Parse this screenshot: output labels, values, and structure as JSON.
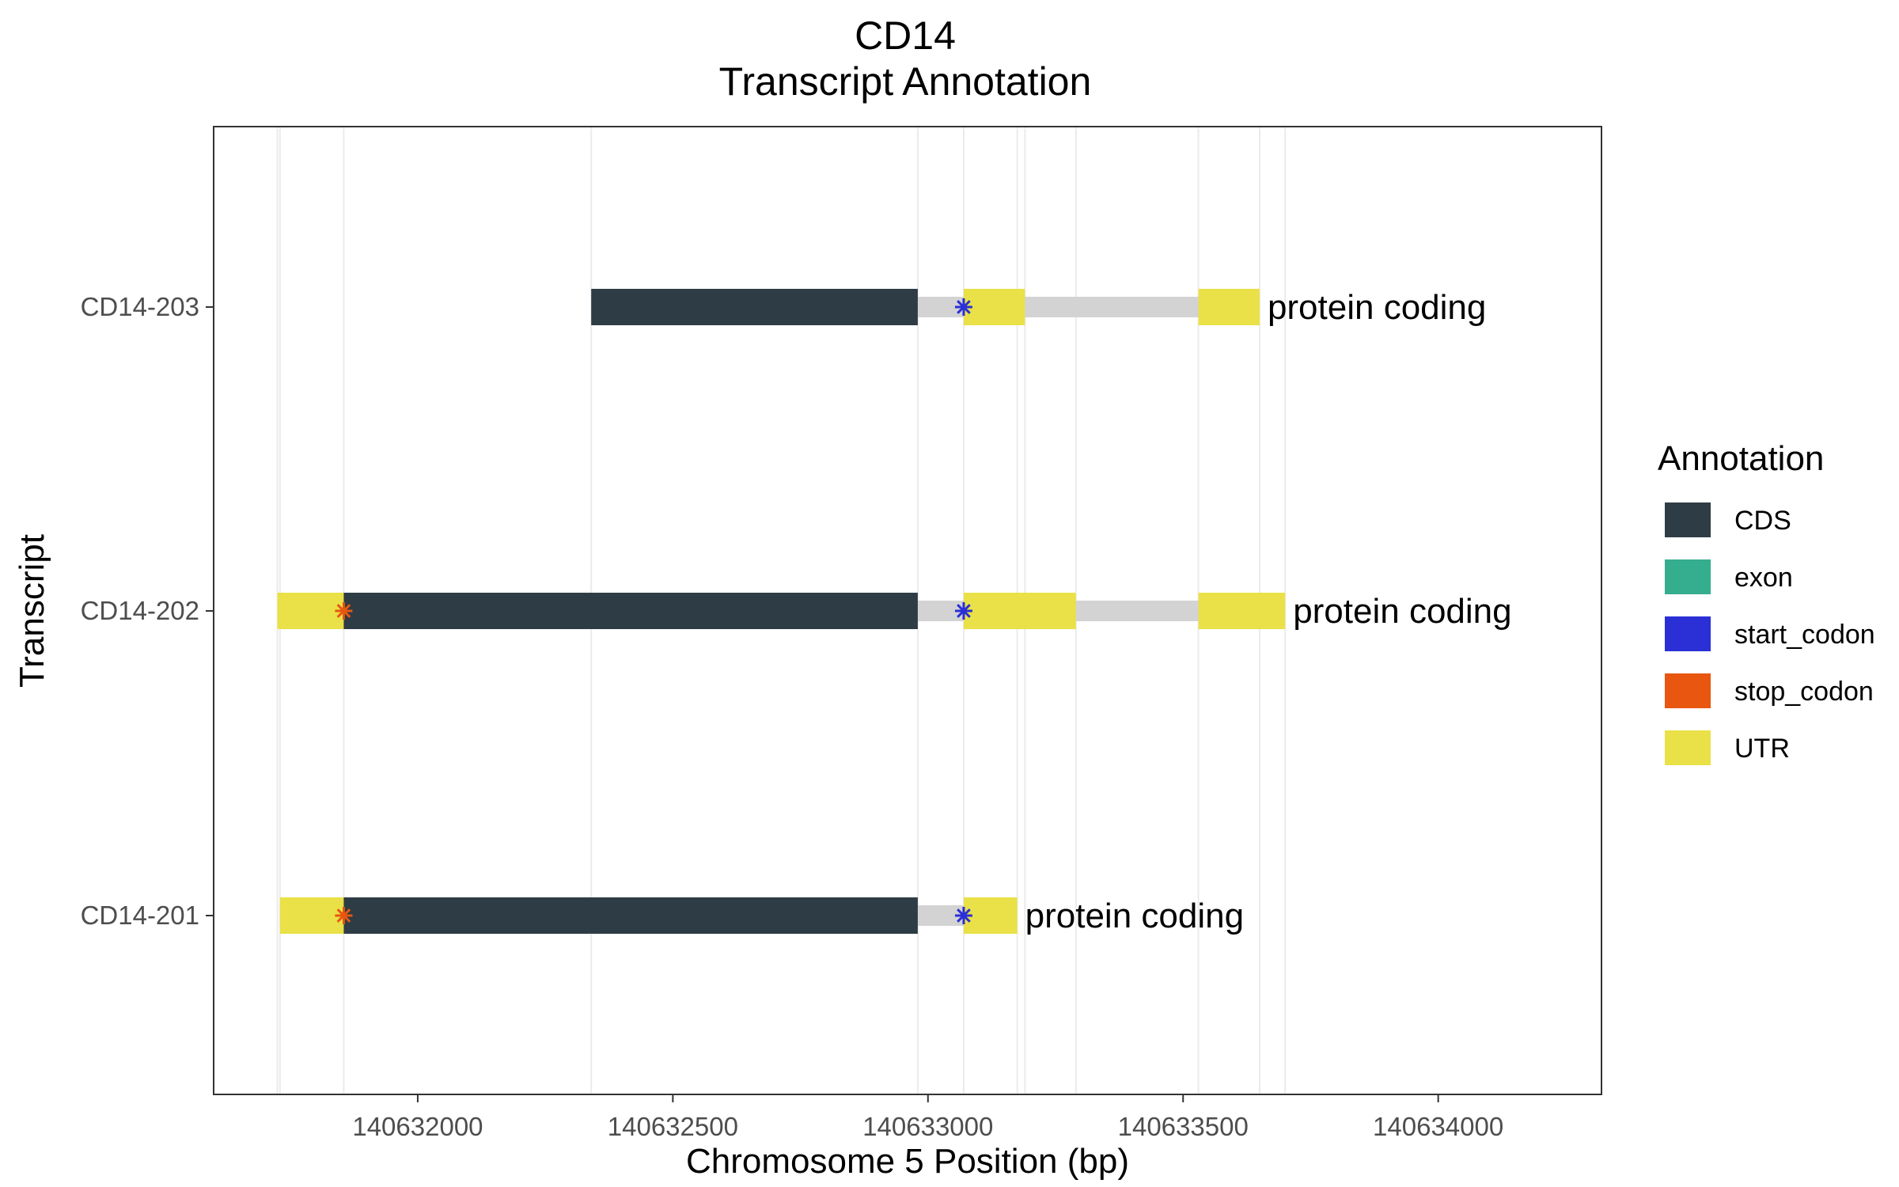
{
  "chart_data": {
    "type": "gene-track",
    "title": "CD14",
    "subtitle": "Transcript Annotation",
    "xlabel": "Chromosome 5 Position (bp)",
    "ylabel": "Transcript",
    "xlim": [
      140631600,
      140634320
    ],
    "x_ticks": [
      140632000,
      140632500,
      140633000,
      140633500,
      140634000
    ],
    "x_tick_labels": [
      "140632000",
      "140632500",
      "140633000",
      "140633500",
      "140634000"
    ],
    "grid": true,
    "legend_position": "right",
    "colors": {
      "CDS": "#2e3c45",
      "exon": "#35ad8f",
      "start_codon": "#2b2fd6",
      "stop_codon": "#e8560f",
      "UTR": "#e9e147",
      "intron": "#d3d3d3"
    },
    "legend": {
      "title": "Annotation",
      "entries": [
        "CDS",
        "exon",
        "start_codon",
        "stop_codon",
        "UTR"
      ]
    },
    "transcripts": [
      {
        "name": "CD14-203",
        "biotype_label": "protein coding",
        "range": [
          140632340,
          140633650
        ],
        "segments": [
          {
            "type": "CDS",
            "start": 140632340,
            "end": 140632980
          },
          {
            "type": "UTR",
            "start": 140633070,
            "end": 140633190
          },
          {
            "type": "UTR",
            "start": 140633530,
            "end": 140633650
          }
        ],
        "start_codon": 140633070,
        "stop_codon": null
      },
      {
        "name": "CD14-202",
        "biotype_label": "protein coding",
        "range": [
          140631725,
          140633700
        ],
        "segments": [
          {
            "type": "UTR",
            "start": 140631725,
            "end": 140631855
          },
          {
            "type": "CDS",
            "start": 140631855,
            "end": 140632980
          },
          {
            "type": "UTR",
            "start": 140633070,
            "end": 140633290
          },
          {
            "type": "UTR",
            "start": 140633530,
            "end": 140633700
          }
        ],
        "start_codon": 140633070,
        "stop_codon": 140631855
      },
      {
        "name": "CD14-201",
        "biotype_label": "protein coding",
        "range": [
          140631730,
          140633175
        ],
        "segments": [
          {
            "type": "UTR",
            "start": 140631730,
            "end": 140631855
          },
          {
            "type": "CDS",
            "start": 140631855,
            "end": 140632980
          },
          {
            "type": "UTR",
            "start": 140633070,
            "end": 140633175
          }
        ],
        "start_codon": 140633070,
        "stop_codon": 140631855
      }
    ]
  }
}
